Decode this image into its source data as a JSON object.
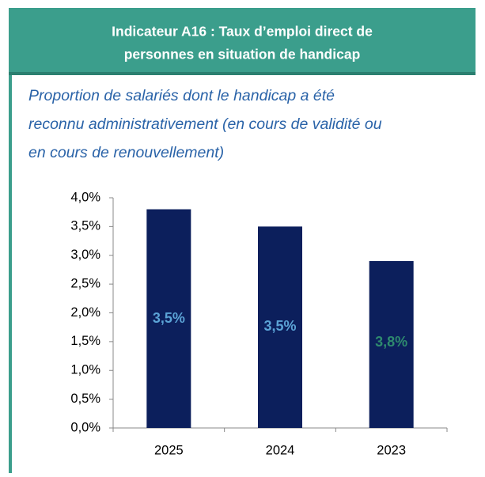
{
  "header": {
    "title": [
      "Indicateur A16 : Taux d’emploi direct de",
      "personnes en situation de handicap"
    ]
  },
  "chart_data": {
    "type": "bar",
    "subtitle": [
      "Proportion de salariés dont le handicap a été",
      "reconnu administrativement (en cours de validité ou",
      "en cours de renouvellement)"
    ],
    "categories": [
      "2025",
      "2024",
      "2023"
    ],
    "values": [
      3.8,
      3.5,
      2.9
    ],
    "color": "#0c1f5c",
    "ylim": [
      0,
      4
    ],
    "yticks": [
      {
        "value": 0,
        "label": "0,0%"
      },
      {
        "value": 0.5,
        "label": "0,5%"
      },
      {
        "value": 1,
        "label": "1,0%"
      },
      {
        "value": 1.5,
        "label": "1,5%"
      },
      {
        "value": 2,
        "label": "2,0%"
      },
      {
        "value": 2.5,
        "label": "2,5%"
      },
      {
        "value": 3,
        "label": "3,0%"
      },
      {
        "value": 3.5,
        "label": "3,5%"
      },
      {
        "value": 4,
        "label": "4,0%"
      }
    ],
    "annotations": [
      {
        "text": "3,5%",
        "color": "#5ba3d6"
      },
      {
        "text": "3,5%",
        "color": "#5ba3d6"
      },
      {
        "text": "3,8%",
        "color": "#2e8a6e"
      }
    ]
  }
}
